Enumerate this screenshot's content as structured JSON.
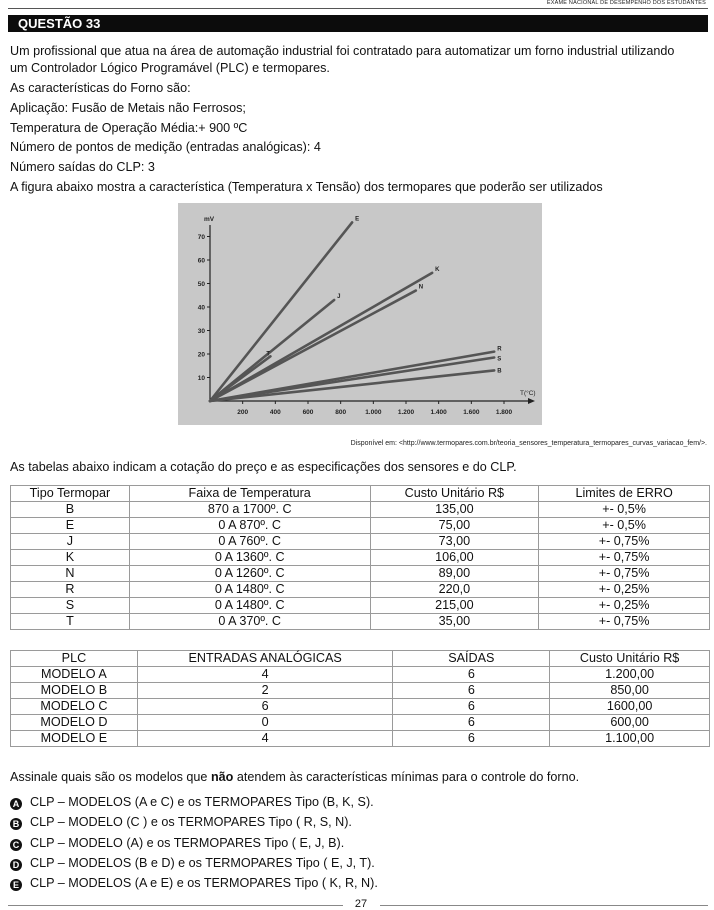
{
  "header": {
    "exam_name": "EXAME NACIONAL DE DESEMPENHO DOS ESTUDANTES"
  },
  "question": {
    "title": "QUESTÃO 33",
    "intro_line1": "Um profissional que atua na área de automação industrial foi contratado para automatizar um forno industrial utilizando",
    "intro_line2": "um Controlador Lógico Programável (PLC) e termopares.",
    "characteristics_title": "As características do Forno são:",
    "application": "Aplicação: Fusão de Metais não Ferrosos;",
    "temperature": "Temperatura de Operação Média:+ 900 ºC",
    "measurement_points": "Número de pontos de medição (entradas analógicas): 4",
    "outputs": "Número saídas do CLP: 3",
    "figure_intro": "A figura abaixo mostra a característica (Temperatura x Tensão) dos termopares que poderão ser utilizados",
    "citation": "Disponível em: <http://www.termopares.com.br/teoria_sensores_temperatura_termopares_curvas_variacao_fem/>.",
    "tables_intro": "As tabelas abaixo indicam a cotação do preço e as especificações dos sensores e do CLP.",
    "prompt_before": "Assinale quais são os modelos que ",
    "prompt_bold": "não",
    "prompt_after": " atendem às características mínimas para o controle do forno."
  },
  "chart_data": {
    "type": "line",
    "xlabel": "T(°C)",
    "ylabel": "mV",
    "xlim": [
      0,
      1800
    ],
    "ylim": [
      0,
      80
    ],
    "x_ticks": [
      "200",
      "400",
      "600",
      "800",
      "1.000",
      "1.200",
      "1.400",
      "1.600",
      "1.800"
    ],
    "y_ticks": [
      "10",
      "20",
      "30",
      "40",
      "50",
      "60",
      "70"
    ],
    "series": [
      {
        "name": "E",
        "x": [
          0,
          870
        ],
        "y": [
          0,
          76
        ]
      },
      {
        "name": "J",
        "x": [
          0,
          760
        ],
        "y": [
          0,
          43
        ]
      },
      {
        "name": "K",
        "x": [
          0,
          1360
        ],
        "y": [
          0,
          54.5
        ]
      },
      {
        "name": "N",
        "x": [
          0,
          1260
        ],
        "y": [
          0,
          47
        ]
      },
      {
        "name": "T",
        "x": [
          0,
          370
        ],
        "y": [
          0,
          19
        ]
      },
      {
        "name": "R",
        "x": [
          0,
          1740
        ],
        "y": [
          0,
          21
        ]
      },
      {
        "name": "S",
        "x": [
          0,
          1740
        ],
        "y": [
          0,
          18.5
        ]
      },
      {
        "name": "B",
        "x": [
          0,
          1740
        ],
        "y": [
          0,
          13
        ]
      }
    ]
  },
  "thermocouple_table": {
    "headers": [
      "Tipo Termopar",
      "Faixa de Temperatura",
      "Custo Unitário R$",
      "Limites de ERRO"
    ],
    "rows": [
      [
        "B",
        "870 a  1700º. C",
        "135,00",
        "+- 0,5%"
      ],
      [
        "E",
        "0 A 870º. C",
        "75,00",
        "+- 0,5%"
      ],
      [
        "J",
        "0 A 760º. C",
        "73,00",
        "+- 0,75%"
      ],
      [
        "K",
        "0 A 1360º. C",
        "106,00",
        "+- 0,75%"
      ],
      [
        "N",
        "0 A 1260º. C",
        "89,00",
        "+- 0,75%"
      ],
      [
        "R",
        "0 A 1480º. C",
        "220,0",
        "+- 0,25%"
      ],
      [
        "S",
        "0 A 1480º. C",
        "215,00",
        "+- 0,25%"
      ],
      [
        "T",
        "0 A 370º. C",
        "35,00",
        "+- 0,75%"
      ]
    ]
  },
  "plc_table": {
    "headers": [
      "PLC",
      "ENTRADAS ANALÓGICAS",
      "SAÍDAS",
      "Custo Unitário R$"
    ],
    "rows": [
      [
        "MODELO A",
        "4",
        "6",
        "1.200,00"
      ],
      [
        "MODELO B",
        "2",
        "6",
        "850,00"
      ],
      [
        "MODELO C",
        "6",
        "6",
        "1600,00"
      ],
      [
        "MODELO D",
        "0",
        "6",
        "600,00"
      ],
      [
        "MODELO E",
        "4",
        "6",
        "1.100,00"
      ]
    ]
  },
  "options": [
    {
      "letter": "A",
      "text": "CLP – MODELOS (A e C) e os TERMOPARES Tipo (B, K, S)."
    },
    {
      "letter": "B",
      "text": "CLP – MODELO (C ) e os TERMOPARES Tipo ( R, S, N)."
    },
    {
      "letter": "C",
      "text": "CLP – MODELO (A) e os TERMOPARES Tipo ( E, J, B)."
    },
    {
      "letter": "D",
      "text": "CLP – MODELOS (B e D) e os TERMOPARES Tipo ( E, J, T)."
    },
    {
      "letter": "E",
      "text": "CLP – MODELOS (A e E) e os TERMOPARES Tipo ( K, R, N)."
    }
  ],
  "footer": {
    "page_number": "27"
  }
}
